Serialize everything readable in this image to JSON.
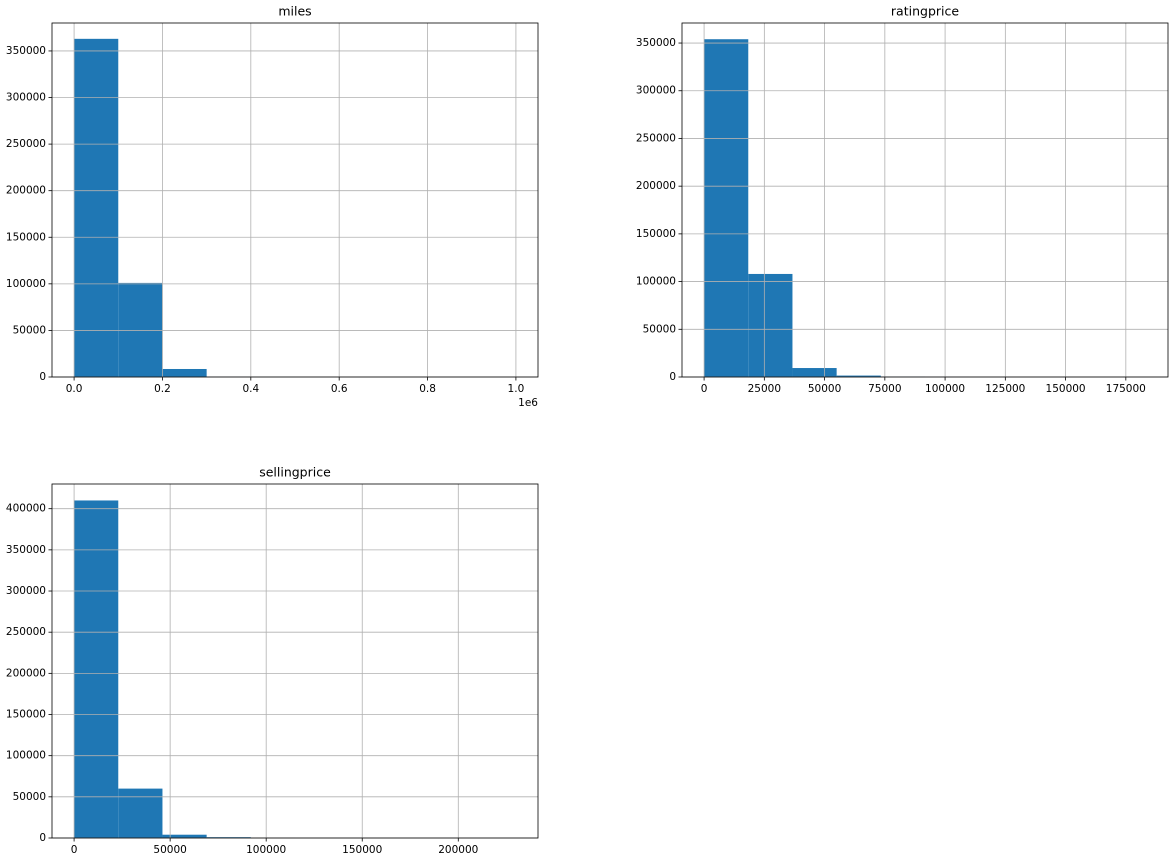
{
  "chart_data": [
    {
      "type": "histogram",
      "title": "miles",
      "annotation": "1e6",
      "bins": [
        0,
        0.1,
        0.2,
        0.3,
        0.4,
        0.5,
        0.6,
        0.7,
        0.8,
        0.9,
        1.0
      ],
      "values": [
        363000,
        101000,
        8600,
        300,
        60,
        20,
        10,
        5,
        3,
        5
      ],
      "color": "#1f77b4",
      "xlim": [
        -0.05,
        1.05
      ],
      "ylim": [
        0,
        380000
      ],
      "xticks": [
        {
          "value": 0,
          "label": "0.0"
        },
        0.2,
        0.4,
        0.6,
        0.8,
        {
          "value": 1,
          "label": "1.0"
        }
      ],
      "yticks": [
        0,
        50000,
        100000,
        150000,
        200000,
        250000,
        300000,
        350000
      ],
      "grid": true
    },
    {
      "type": "histogram",
      "title": "ratingprice",
      "bins": [
        0,
        18333,
        36667,
        55000,
        73333,
        91667,
        110000,
        128333,
        146667,
        165000,
        183333
      ],
      "values": [
        354000,
        108000,
        9400,
        1500,
        500,
        100,
        40,
        10,
        5,
        3
      ],
      "color": "#1f77b4",
      "xlim": [
        -9167,
        192500
      ],
      "ylim": [
        0,
        371000
      ],
      "xticks": [
        0,
        25000,
        50000,
        75000,
        100000,
        125000,
        150000,
        175000
      ],
      "yticks": [
        0,
        50000,
        100000,
        150000,
        200000,
        250000,
        300000,
        350000
      ],
      "grid": true
    },
    {
      "type": "histogram",
      "title": "sellingprice",
      "bins": [
        0,
        23000,
        46000,
        69000,
        92000,
        115000,
        138000,
        161000,
        184000,
        207000,
        230000
      ],
      "values": [
        410000,
        60000,
        4000,
        1000,
        200,
        50,
        20,
        10,
        5,
        2
      ],
      "color": "#1f77b4",
      "xlim": [
        -11500,
        241500
      ],
      "ylim": [
        0,
        430000
      ],
      "xticks": [
        0,
        50000,
        100000,
        150000,
        200000
      ],
      "yticks": [
        0,
        50000,
        100000,
        150000,
        200000,
        250000,
        300000,
        350000,
        400000
      ],
      "grid": true
    }
  ]
}
